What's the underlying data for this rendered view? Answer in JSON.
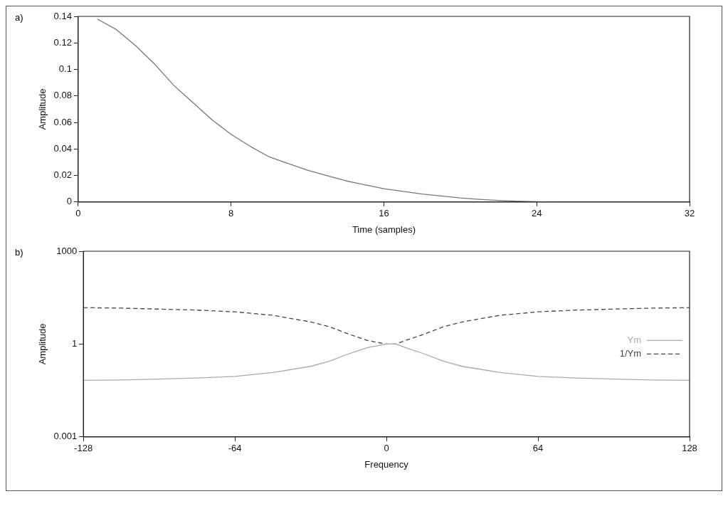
{
  "chart_data": [
    {
      "type": "line",
      "xlabel": "Time (samples)",
      "ylabel": "Amplitude",
      "annotations": [
        "a)"
      ],
      "x": [
        1,
        2,
        3,
        4,
        5,
        6,
        7,
        8,
        9,
        10,
        11,
        12,
        13,
        14,
        15,
        16,
        17,
        18,
        19,
        20,
        21,
        22,
        23,
        24,
        25
      ],
      "series": [
        {
          "color": "#777777",
          "values": [
            0.138,
            0.13,
            0.118,
            0.104,
            0.088,
            0.075,
            0.062,
            0.051,
            0.042,
            0.034,
            0.029,
            0.024,
            0.02,
            0.016,
            0.013,
            0.01,
            0.008,
            0.006,
            0.0045,
            0.003,
            0.002,
            0.0012,
            0.0006,
            0.0002,
            0
          ]
        }
      ],
      "xlim": [
        0,
        32
      ],
      "xticks": [
        0,
        8,
        16,
        24,
        32
      ],
      "ylim": [
        0,
        0.14
      ],
      "yticks": [
        0,
        0.02,
        0.04,
        0.06,
        0.08,
        0.1,
        0.12,
        0.14
      ],
      "grid": false,
      "legend": false,
      "marker": "none",
      "line_style": "solid"
    },
    {
      "type": "line",
      "xlabel": "Frequency",
      "ylabel": "Amplitude",
      "annotations": [
        "b)"
      ],
      "x": [
        -128,
        -112,
        -96,
        -80,
        -64,
        -48,
        -32,
        -24,
        -16,
        -8,
        0,
        4,
        8,
        16,
        24,
        32,
        48,
        64,
        80,
        96,
        112,
        128
      ],
      "series": [
        {
          "name": "Ym",
          "color": "#aaaaaa",
          "line_style": "solid",
          "values": [
            0.067,
            0.069,
            0.074,
            0.08,
            0.09,
            0.12,
            0.19,
            0.28,
            0.48,
            0.77,
            1,
            1,
            0.77,
            0.48,
            0.28,
            0.19,
            0.12,
            0.09,
            0.08,
            0.074,
            0.069,
            0.067
          ]
        },
        {
          "name": "1/Ym",
          "color": "#444444",
          "line_style": "dashed",
          "values": [
            15,
            14.5,
            13.5,
            12.5,
            11,
            8.5,
            5.2,
            3.6,
            2.1,
            1.3,
            1,
            1,
            1.3,
            2.1,
            3.6,
            5.2,
            8.5,
            11,
            12.5,
            13.5,
            14.5,
            15
          ]
        }
      ],
      "xlim": [
        -128,
        128
      ],
      "xticks": [
        -128,
        -64,
        0,
        64,
        128
      ],
      "ylim": [
        0.001,
        1000
      ],
      "yticks": [
        0.001,
        1,
        1000
      ],
      "log": "y",
      "grid": false,
      "legend": "right",
      "marker": "none"
    }
  ]
}
